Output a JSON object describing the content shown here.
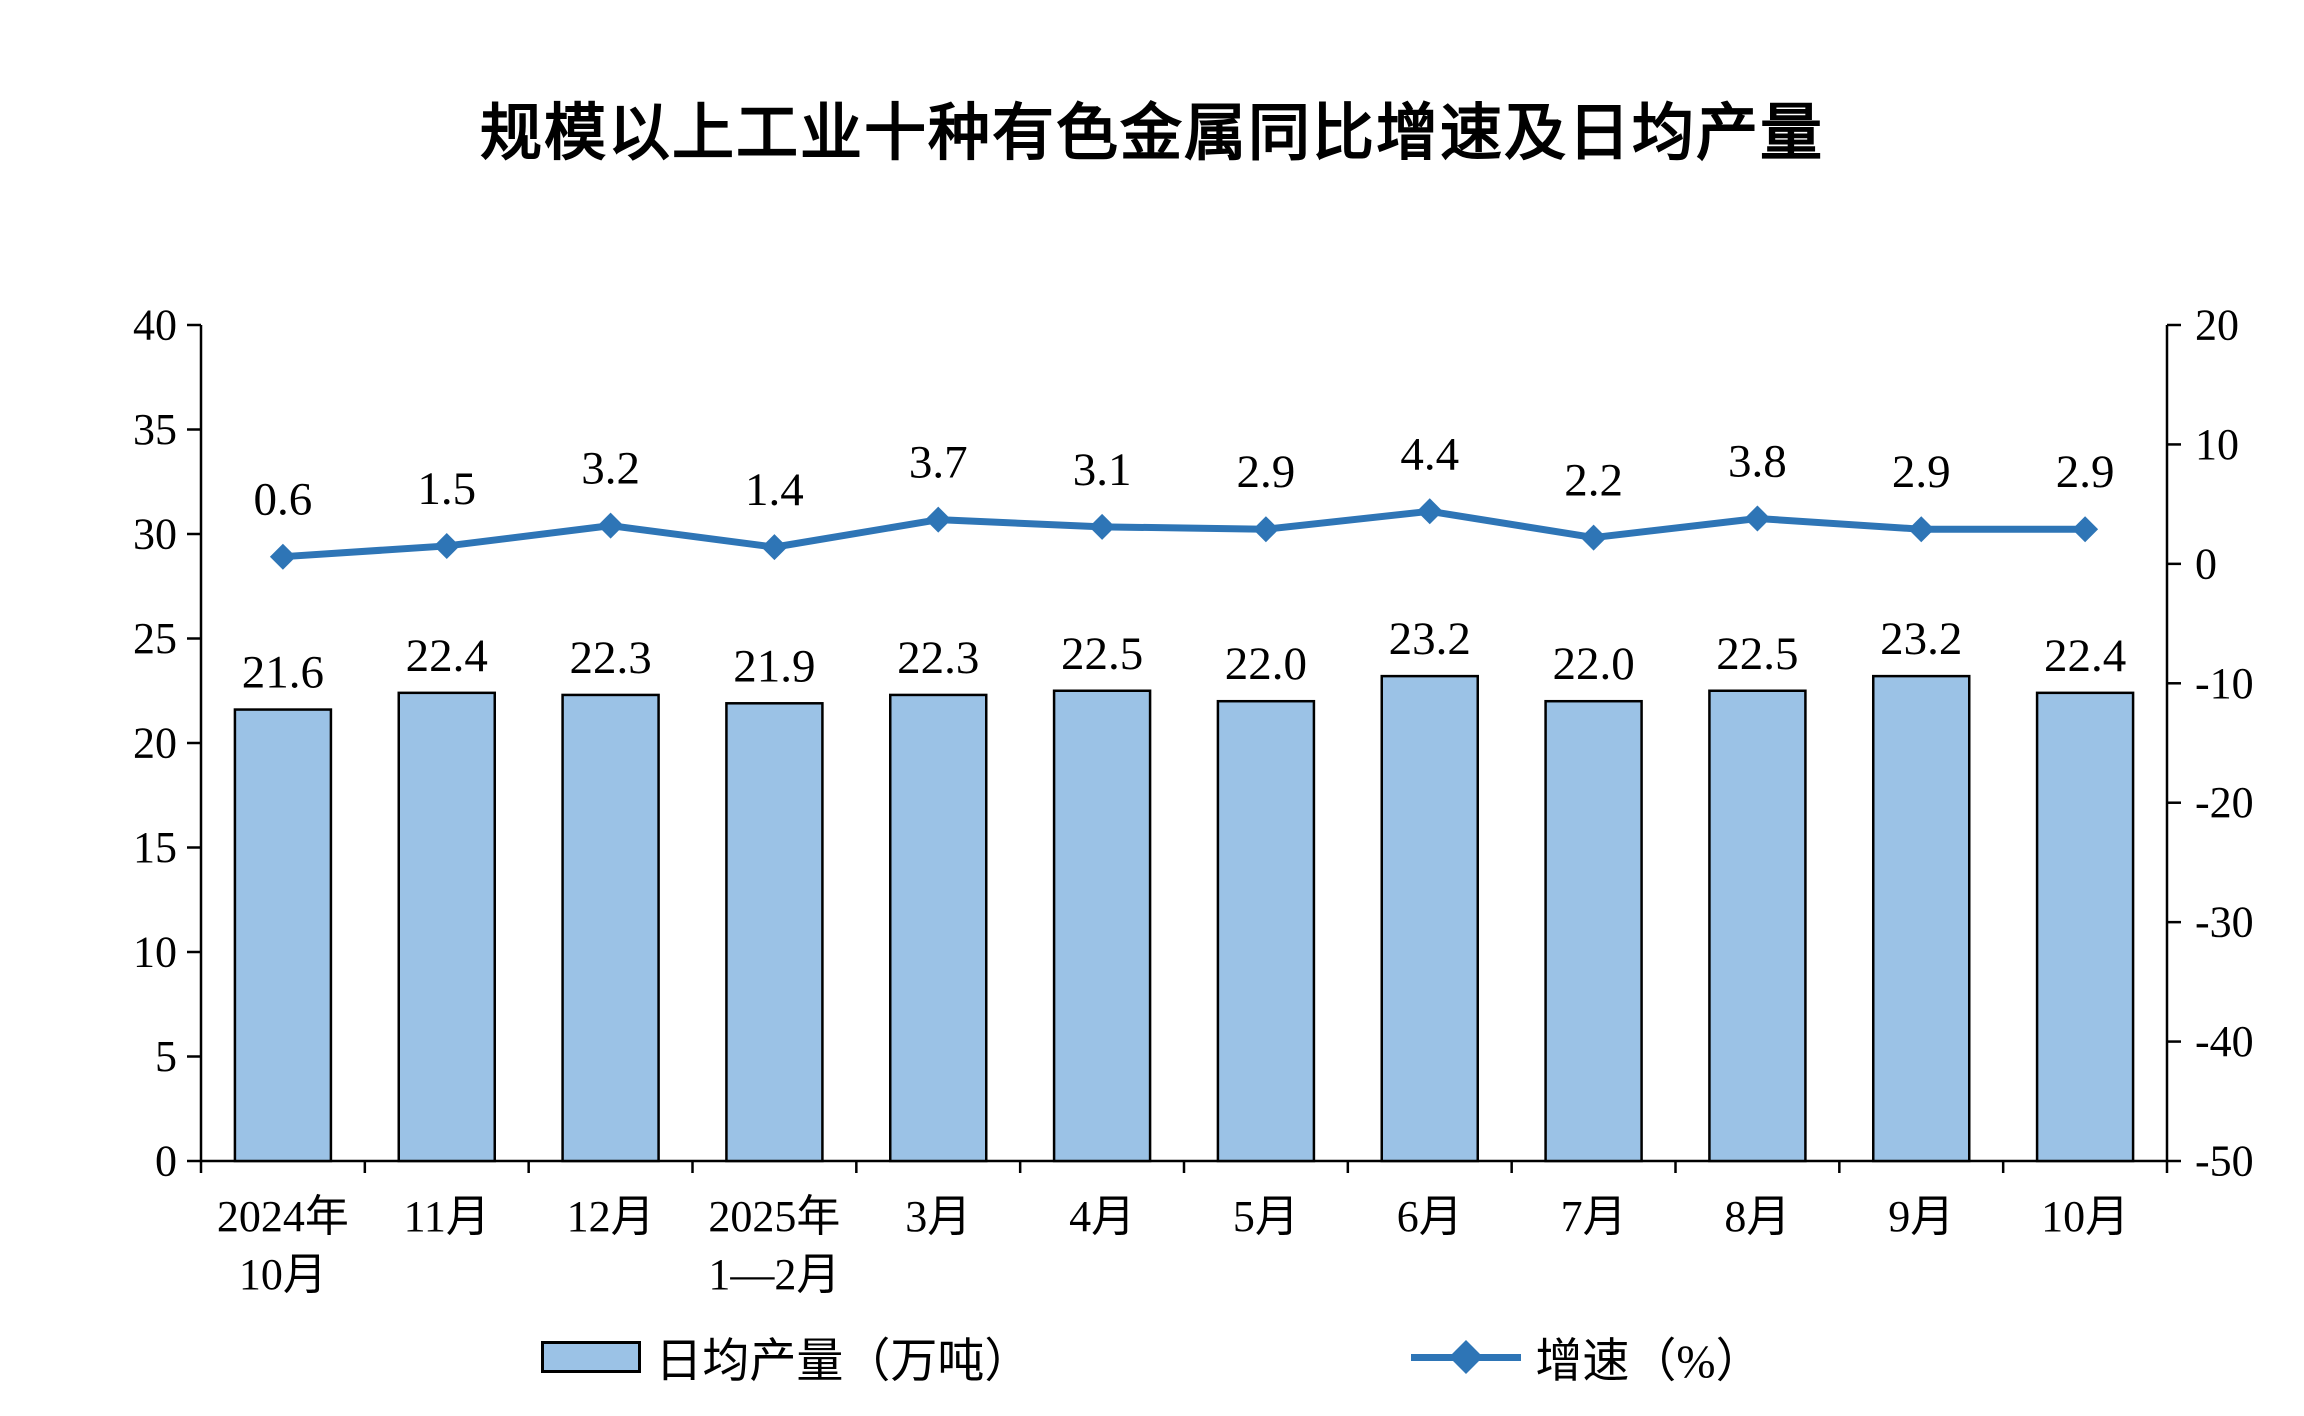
{
  "title": "规模以上工业十种有色金属同比增速及日均产量",
  "legend": {
    "bar_label": "日均产量（万吨）",
    "line_label": "增速（%）"
  },
  "colors": {
    "bar_fill": "#9BC2E6",
    "bar_border": "#000000",
    "line": "#2E75B6",
    "axis": "#000000",
    "text": "#000000"
  },
  "chart_data": {
    "type": "bar",
    "subtype": "combo-bar-line",
    "title": "规模以上工业十种有色金属同比增速及日均产量",
    "categories": [
      [
        "2024年",
        "10月"
      ],
      [
        "11月"
      ],
      [
        "12月"
      ],
      [
        "2025年",
        "1—2月"
      ],
      [
        "3月"
      ],
      [
        "4月"
      ],
      [
        "5月"
      ],
      [
        "6月"
      ],
      [
        "7月"
      ],
      [
        "8月"
      ],
      [
        "9月"
      ],
      [
        "10月"
      ]
    ],
    "series": [
      {
        "name": "日均产量（万吨）",
        "type": "bar",
        "axis": "left",
        "values": [
          21.6,
          22.4,
          22.3,
          21.9,
          22.3,
          22.5,
          22.0,
          23.2,
          22.0,
          22.5,
          23.2,
          22.4
        ]
      },
      {
        "name": "增速（%）",
        "type": "line",
        "axis": "right",
        "values": [
          0.6,
          1.5,
          3.2,
          1.4,
          3.7,
          3.1,
          2.9,
          4.4,
          2.2,
          3.8,
          2.9,
          2.9
        ]
      }
    ],
    "left_axis": {
      "min": 0,
      "max": 40,
      "step": 5,
      "ticks": [
        0,
        5,
        10,
        15,
        20,
        25,
        30,
        35,
        40
      ]
    },
    "right_axis": {
      "min": -50,
      "max": 20,
      "step": 10,
      "ticks": [
        20,
        10,
        0,
        -10,
        -20,
        -30,
        -40,
        -50
      ]
    },
    "grid": false,
    "legend_position": "bottom",
    "data_labels": true,
    "label_decimals": 1
  }
}
